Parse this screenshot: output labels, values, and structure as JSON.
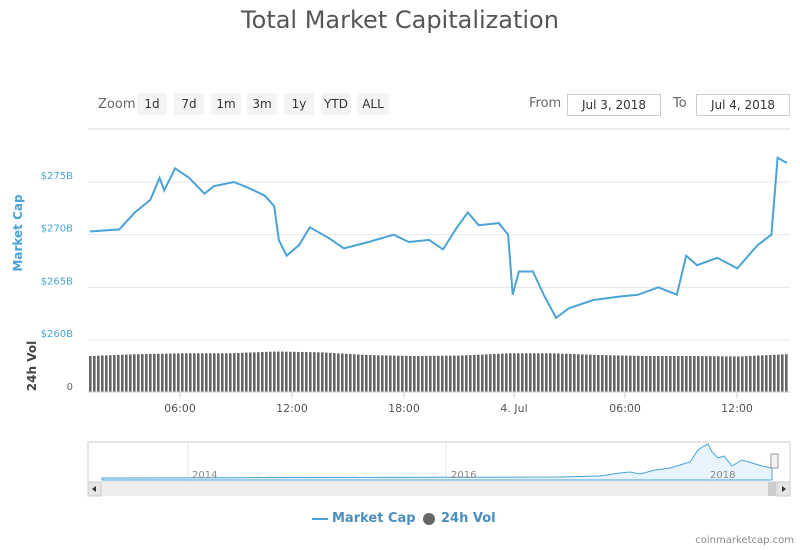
{
  "chart_data": {
    "type": "line",
    "title": "Total Market Capitalization",
    "ylabel": "Market Cap",
    "ylabel2": "24h Vol",
    "yticks": [
      "$260B",
      "$265B",
      "$270B",
      "$275B"
    ],
    "ylim": [
      260,
      278
    ],
    "y2ticks": [
      "0"
    ],
    "xticks": [
      "06:00",
      "12:00",
      "18:00",
      "4. Jul",
      "06:00",
      "12:00"
    ],
    "xlim": [
      "2018-07-03 01:04",
      "2018-07-04 14:50"
    ],
    "grid": true,
    "legend_position": "bottom",
    "series": [
      {
        "name": "Market Cap",
        "color": "#4aa3d6",
        "points": [
          [
            "2018-07-03 01:10",
            270.3
          ],
          [
            "2018-07-03 02:45",
            270.5
          ],
          [
            "2018-07-03 03:35",
            272.1
          ],
          [
            "2018-07-03 04:25",
            273.3
          ],
          [
            "2018-07-03 04:55",
            275.4
          ],
          [
            "2018-07-03 05:10",
            274.2
          ],
          [
            "2018-07-03 05:45",
            276.3
          ],
          [
            "2018-07-03 06:30",
            275.4
          ],
          [
            "2018-07-03 07:20",
            273.9
          ],
          [
            "2018-07-03 07:50",
            274.6
          ],
          [
            "2018-07-03 08:55",
            275.0
          ],
          [
            "2018-07-03 09:45",
            274.4
          ],
          [
            "2018-07-03 10:35",
            273.7
          ],
          [
            "2018-07-03 11:05",
            272.7
          ],
          [
            "2018-07-03 11:20",
            269.5
          ],
          [
            "2018-07-03 11:45",
            268.0
          ],
          [
            "2018-07-03 12:25",
            269.0
          ],
          [
            "2018-07-03 13:00",
            270.7
          ],
          [
            "2018-07-03 14:00",
            269.7
          ],
          [
            "2018-07-03 14:50",
            268.7
          ],
          [
            "2018-07-03 16:10",
            269.3
          ],
          [
            "2018-07-03 17:30",
            270.0
          ],
          [
            "2018-07-03 18:20",
            269.3
          ],
          [
            "2018-07-03 19:25",
            269.5
          ],
          [
            "2018-07-03 20:10",
            268.6
          ],
          [
            "2018-07-03 20:55",
            270.7
          ],
          [
            "2018-07-03 21:30",
            272.1
          ],
          [
            "2018-07-03 22:05",
            270.9
          ],
          [
            "2018-07-03 23:10",
            271.1
          ],
          [
            "2018-07-03 23:40",
            270.0
          ],
          [
            "2018-07-03 23:55",
            264.3
          ],
          [
            "2018-07-04 00:15",
            266.5
          ],
          [
            "2018-07-04 01:00",
            266.5
          ],
          [
            "2018-07-04 01:35",
            264.3
          ],
          [
            "2018-07-04 02:15",
            262.1
          ],
          [
            "2018-07-04 02:55",
            263.0
          ],
          [
            "2018-07-04 04:15",
            263.8
          ],
          [
            "2018-07-04 05:35",
            264.1
          ],
          [
            "2018-07-04 06:40",
            264.3
          ],
          [
            "2018-07-04 07:45",
            265.0
          ],
          [
            "2018-07-04 08:45",
            264.3
          ],
          [
            "2018-07-04 09:15",
            268.0
          ],
          [
            "2018-07-04 09:50",
            267.1
          ],
          [
            "2018-07-04 10:55",
            267.8
          ],
          [
            "2018-07-04 12:00",
            266.8
          ],
          [
            "2018-07-04 13:05",
            269.0
          ],
          [
            "2018-07-04 13:50",
            270.0
          ],
          [
            "2018-07-04 14:10",
            277.3
          ],
          [
            "2018-07-04 14:40",
            276.8
          ]
        ]
      },
      {
        "name": "24h Vol",
        "color": "#666666",
        "relative_levels": [
          0.8,
          0.84,
          0.86,
          0.86,
          0.9,
          0.88,
          0.82,
          0.8,
          0.81,
          0.86,
          0.86,
          0.82,
          0.8,
          0.8,
          0.79,
          0.84
        ]
      }
    ]
  },
  "toolbar": {
    "zoom_label": "Zoom",
    "zoom_buttons": [
      "1d",
      "7d",
      "1m",
      "3m",
      "1y",
      "YTD",
      "ALL"
    ],
    "from_label": "From",
    "from_value": "Jul 3, 2018",
    "to_label": "To",
    "to_value": "Jul 4, 2018"
  },
  "navigator": {
    "years": [
      "2014",
      "2016",
      "2018"
    ]
  },
  "credit": "coinmarketcap.com"
}
